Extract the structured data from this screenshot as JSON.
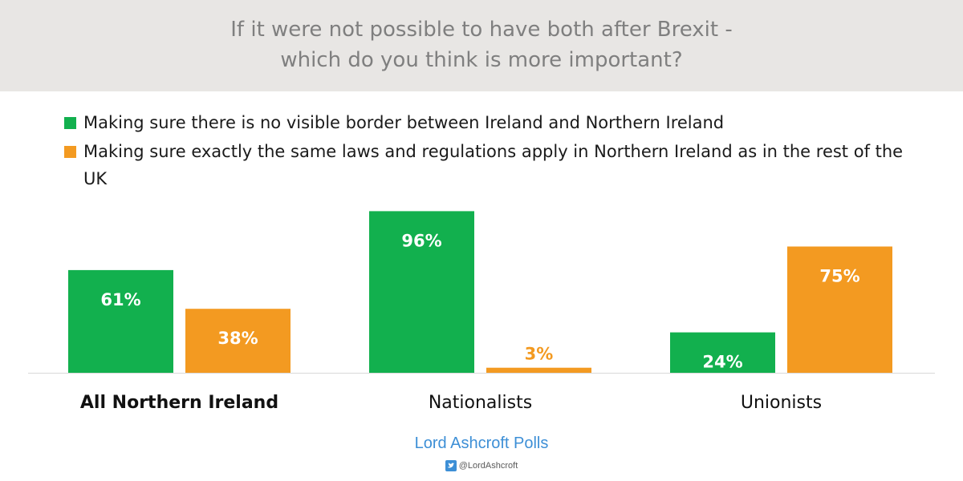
{
  "header": {
    "title_line1": "If it were not possible to have both after Brexit -",
    "title_line2": "which do you think is more important?"
  },
  "legend": {
    "items": [
      {
        "label": "Making sure there is no visible border between Ireland and Northern Ireland",
        "color": "#12b04e"
      },
      {
        "label": "Making sure exactly the same laws and regulations apply in Northern Ireland as in the rest of the UK",
        "color": "#f39a21"
      }
    ]
  },
  "chart_data": {
    "type": "bar",
    "categories": [
      "All Northern Ireland",
      "Nationalists",
      "Unionists"
    ],
    "category_bold": [
      true,
      false,
      false
    ],
    "series": [
      {
        "name": "Making sure there is no visible border between Ireland and Northern Ireland",
        "values": [
          61,
          96,
          24
        ],
        "labels": [
          "61%",
          "96%",
          "24%"
        ],
        "color": "#12b04e"
      },
      {
        "name": "Making sure exactly the same laws and regulations apply in Northern Ireland as in the rest of the UK",
        "values": [
          38,
          3,
          75
        ],
        "labels": [
          "38%",
          "3%",
          "75%"
        ],
        "color": "#f39a21"
      }
    ],
    "ylim": [
      0,
      100
    ],
    "grid": false,
    "legend_position": "top-left",
    "label_color": "#ffffff",
    "small_label_color": "#f39a21"
  },
  "footer": {
    "source": "Lord Ashcroft Polls",
    "handle": "@LordAshcroft",
    "handle_icon": "twitter-icon"
  }
}
